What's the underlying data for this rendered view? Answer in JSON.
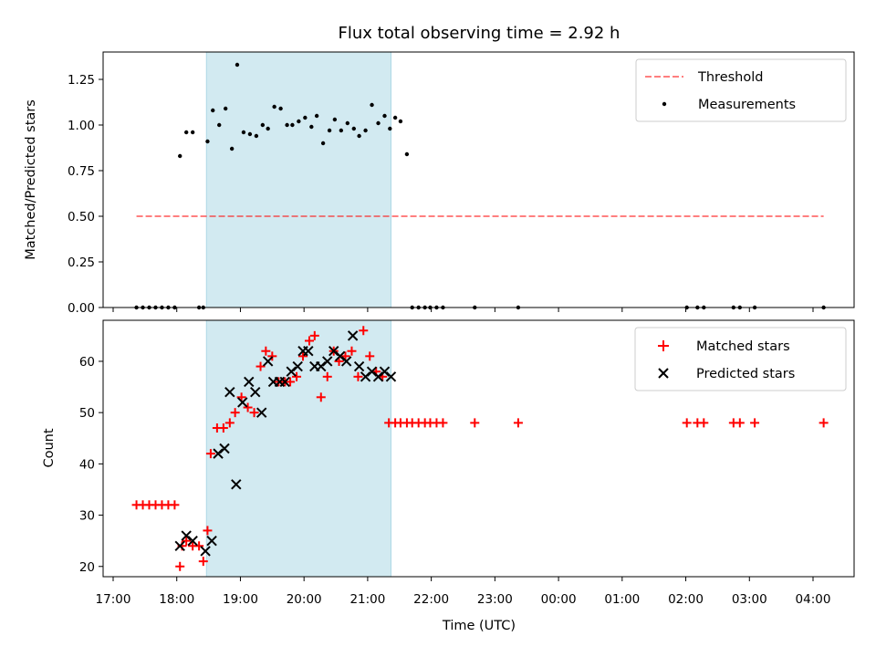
{
  "chart_data": [
    {
      "type": "scatter",
      "title": "Flux total observing time = 2.92 h",
      "xlabel": "",
      "ylabel": "Matched/Predicted stars",
      "ylim": [
        0,
        1.4
      ],
      "yticks": [
        "0.00",
        "0.25",
        "0.50",
        "0.75",
        "1.00",
        "1.25"
      ],
      "highlight_span": {
        "x": [
          "18:28",
          "21:22"
        ],
        "color": "#add8e6"
      },
      "series": [
        {
          "name": "Threshold",
          "style": "dashed-line",
          "color": "#ff0000",
          "x": [
            "17:22",
            "04:10"
          ],
          "y": [
            0.5,
            0.5
          ]
        },
        {
          "name": "Measurements",
          "style": "dot",
          "color": "#000000",
          "x": [
            "17:22",
            "17:28",
            "17:34",
            "17:40",
            "17:46",
            "17:52",
            "17:58",
            "18:03",
            "18:09",
            "18:15",
            "18:21",
            "18:25",
            "18:29",
            "18:34",
            "18:40",
            "18:46",
            "18:52",
            "18:57",
            "19:03",
            "19:09",
            "19:15",
            "19:21",
            "19:26",
            "19:32",
            "19:38",
            "19:44",
            "19:49",
            "19:55",
            "20:01",
            "20:07",
            "20:12",
            "20:18",
            "20:24",
            "20:29",
            "20:35",
            "20:41",
            "20:47",
            "20:52",
            "20:58",
            "21:04",
            "21:10",
            "21:16",
            "21:21",
            "21:26",
            "21:31",
            "21:37",
            "21:42",
            "21:48",
            "21:54",
            "21:59",
            "22:05",
            "22:11",
            "22:41",
            "23:22",
            "02:01",
            "02:11",
            "02:17",
            "02:45",
            "02:51",
            "03:05",
            "04:10"
          ],
          "y": [
            0,
            0,
            0,
            0,
            0,
            0,
            0,
            0.83,
            0.96,
            0.96,
            0,
            0,
            0.91,
            1.08,
            1.0,
            1.09,
            0.87,
            1.33,
            0.96,
            0.95,
            0.94,
            1.0,
            0.98,
            1.1,
            1.09,
            1.0,
            1.0,
            1.02,
            1.04,
            0.99,
            1.05,
            0.9,
            0.97,
            1.03,
            0.97,
            1.01,
            0.98,
            0.94,
            0.97,
            1.11,
            1.01,
            1.05,
            0.98,
            1.04,
            1.02,
            0.84,
            0,
            0,
            0,
            0,
            0,
            0,
            0,
            0,
            0,
            0,
            0,
            0,
            0,
            0,
            0
          ]
        }
      ]
    },
    {
      "type": "scatter",
      "title": "",
      "xlabel": "Time (UTC)",
      "ylabel": "Count",
      "ylim": [
        18,
        68
      ],
      "yticks": [
        "20",
        "30",
        "40",
        "50",
        "60"
      ],
      "xticks": [
        "17:00",
        "18:00",
        "19:00",
        "20:00",
        "21:00",
        "22:00",
        "23:00",
        "00:00",
        "01:00",
        "02:00",
        "03:00",
        "04:00"
      ],
      "highlight_span": {
        "x": [
          "18:28",
          "21:22"
        ],
        "color": "#add8e6"
      },
      "series": [
        {
          "name": "Matched stars",
          "style": "plus",
          "color": "#ff0000",
          "x": [
            "17:22",
            "17:28",
            "17:34",
            "17:40",
            "17:46",
            "17:52",
            "17:58",
            "18:03",
            "18:05",
            "18:09",
            "18:15",
            "18:21",
            "18:25",
            "18:29",
            "18:32",
            "18:38",
            "18:44",
            "18:50",
            "18:55",
            "19:01",
            "19:07",
            "19:13",
            "19:19",
            "19:24",
            "19:30",
            "19:36",
            "19:42",
            "19:47",
            "19:53",
            "19:59",
            "20:05",
            "20:10",
            "20:16",
            "20:22",
            "20:28",
            "20:33",
            "20:39",
            "20:45",
            "20:51",
            "20:56",
            "21:02",
            "21:08",
            "21:14",
            "21:20",
            "21:26",
            "21:31",
            "21:37",
            "21:42",
            "21:48",
            "21:54",
            "21:59",
            "22:05",
            "22:11",
            "22:41",
            "23:22",
            "02:01",
            "02:11",
            "02:17",
            "02:45",
            "02:51",
            "03:05",
            "04:10"
          ],
          "y": [
            32,
            32,
            32,
            32,
            32,
            32,
            32,
            20,
            24,
            25,
            24,
            24,
            21,
            27,
            42,
            47,
            47,
            48,
            50,
            53,
            51,
            50,
            59,
            62,
            61,
            56,
            56,
            56,
            57,
            61,
            64,
            65,
            53,
            57,
            62,
            60,
            61,
            62,
            57,
            66,
            61,
            58,
            57,
            48,
            48,
            48,
            48,
            48,
            48,
            48,
            48,
            48,
            48,
            48,
            48,
            48,
            48,
            48,
            48,
            48,
            48,
            48
          ]
        },
        {
          "name": "Predicted stars",
          "style": "x",
          "color": "#000000",
          "x": [
            "18:03",
            "18:09",
            "18:15",
            "18:27",
            "18:33",
            "18:39",
            "18:45",
            "18:50",
            "18:56",
            "19:02",
            "19:08",
            "19:14",
            "19:20",
            "19:26",
            "19:31",
            "19:37",
            "19:42",
            "19:48",
            "19:54",
            "19:59",
            "20:04",
            "20:10",
            "20:16",
            "20:22",
            "20:28",
            "20:34",
            "20:40",
            "20:46",
            "20:52",
            "20:58",
            "21:04",
            "21:10",
            "21:16",
            "21:22"
          ],
          "y": [
            24,
            26,
            25,
            23,
            25,
            42,
            43,
            54,
            36,
            52,
            56,
            54,
            50,
            60,
            56,
            56,
            56,
            58,
            59,
            62,
            62,
            59,
            59,
            60,
            62,
            61,
            60,
            65,
            59,
            57,
            58,
            57,
            58,
            57
          ]
        }
      ]
    }
  ]
}
